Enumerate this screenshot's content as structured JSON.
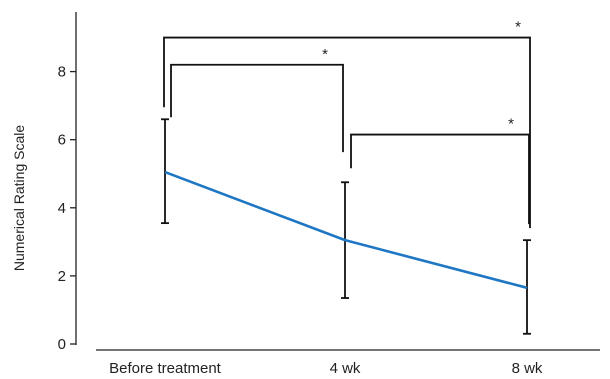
{
  "chart_data": {
    "type": "line",
    "categories": [
      "Before treatment",
      "4 wk",
      "8 wk"
    ],
    "series": [
      {
        "values": [
          5.05,
          3.05,
          1.65
        ],
        "error_low": [
          3.55,
          1.35,
          0.3
        ],
        "error_high": [
          6.6,
          4.75,
          3.05
        ],
        "color": "#1f77c4"
      }
    ],
    "ylabel": "Numerical Rating Scale",
    "xlabel": "",
    "title": "",
    "ylim": [
      0,
      9.75
    ],
    "yticks": [
      0,
      2,
      4,
      6,
      8
    ],
    "grid": false,
    "significance": [
      {
        "from": 0,
        "to": 1,
        "label": "*",
        "level": 8.2
      },
      {
        "from": 1,
        "to": 2,
        "label": "*",
        "level": 6.15
      },
      {
        "from": 0,
        "to": 2,
        "label": "*",
        "level": 9.0
      }
    ]
  }
}
